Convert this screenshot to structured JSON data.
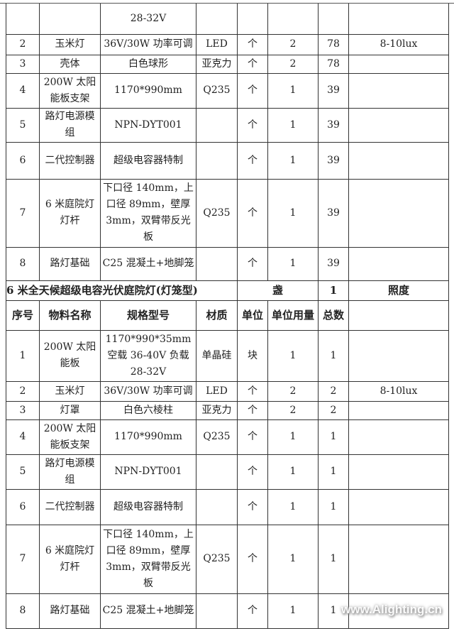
{
  "section1_tail": [
    {
      "no": "",
      "name": "",
      "spec": "28-32V",
      "material": "",
      "unit": "",
      "qty": "",
      "total": "",
      "note": ""
    },
    {
      "no": "2",
      "name": "玉米灯",
      "spec": "36V/30W 功率可调",
      "material": "LED",
      "unit": "个",
      "qty": "2",
      "total": "78",
      "note": "8-10lux"
    },
    {
      "no": "3",
      "name": "壳体",
      "spec": "白色球形",
      "material": "亚克力",
      "unit": "个",
      "qty": "2",
      "total": "78",
      "note": ""
    },
    {
      "no": "4",
      "name": "200W 太阳能板支架",
      "spec": "1170*990mm",
      "material": "Q235",
      "unit": "个",
      "qty": "1",
      "total": "39",
      "note": ""
    },
    {
      "no": "5",
      "name": "路灯电源模组",
      "spec": "NPN-DYT001",
      "material": "",
      "unit": "个",
      "qty": "1",
      "total": "39",
      "note": ""
    },
    {
      "no": "6",
      "name": "二代控制器",
      "spec": "超级电容器特制",
      "material": "",
      "unit": "个",
      "qty": "1",
      "total": "39",
      "note": ""
    },
    {
      "no": "7",
      "name": "6 米庭院灯灯杆",
      "spec": "下口径 140mm，上口径 89mm，壁厚 3mm，双臂带反光板",
      "material": "Q235",
      "unit": "个",
      "qty": "1",
      "total": "39",
      "note": ""
    },
    {
      "no": "8",
      "name": "路灯基础",
      "spec": "C25 混凝土+地脚笼",
      "material": "",
      "unit": "个",
      "qty": "1",
      "total": "39",
      "note": ""
    }
  ],
  "section2": {
    "title": "6 米全天候超级电容光伏庭院灯(灯笼型)",
    "unit": "盏",
    "count": "1",
    "note_header": "照度",
    "headers": [
      "序号",
      "物料名称",
      "规格型号",
      "材质",
      "单位",
      "单位用量",
      "总数",
      ""
    ],
    "rows": [
      {
        "no": "1",
        "name": "200W 太阳能板",
        "spec": "1170*990*35mm 空载 36-40V 负载 28-32V",
        "material": "单晶硅",
        "unit": "块",
        "qty": "1",
        "total": "1",
        "note": ""
      },
      {
        "no": "2",
        "name": "玉米灯",
        "spec": "36V/30W 功率可调",
        "material": "LED",
        "unit": "个",
        "qty": "2",
        "total": "2",
        "note": "8-10lux"
      },
      {
        "no": "3",
        "name": "灯罩",
        "spec": "白色六棱柱",
        "material": "亚克力",
        "unit": "个",
        "qty": "2",
        "total": "2",
        "note": ""
      },
      {
        "no": "4",
        "name": "200W 太阳能板支架",
        "spec": "1170*990mm",
        "material": "Q235",
        "unit": "个",
        "qty": "1",
        "total": "1",
        "note": ""
      },
      {
        "no": "5",
        "name": "路灯电源模组",
        "spec": "NPN-DYT001",
        "material": "",
        "unit": "个",
        "qty": "1",
        "total": "1",
        "note": ""
      },
      {
        "no": "6",
        "name": "二代控制器",
        "spec": "超级电容器特制",
        "material": "",
        "unit": "个",
        "qty": "1",
        "total": "1",
        "note": ""
      },
      {
        "no": "7",
        "name": "6 米庭院灯灯杆",
        "spec": "下口径 140mm，上口径 89mm，壁厚 3mm，双臂带反光板",
        "material": "Q235",
        "unit": "个",
        "qty": "1",
        "total": "1",
        "note": ""
      },
      {
        "no": "8",
        "name": "路灯基础",
        "spec": "C25 混凝土+地脚笼",
        "material": "",
        "unit": "个",
        "qty": "1",
        "total": "1",
        "note": ""
      }
    ]
  },
  "watermark": "www.Alighting.cn"
}
